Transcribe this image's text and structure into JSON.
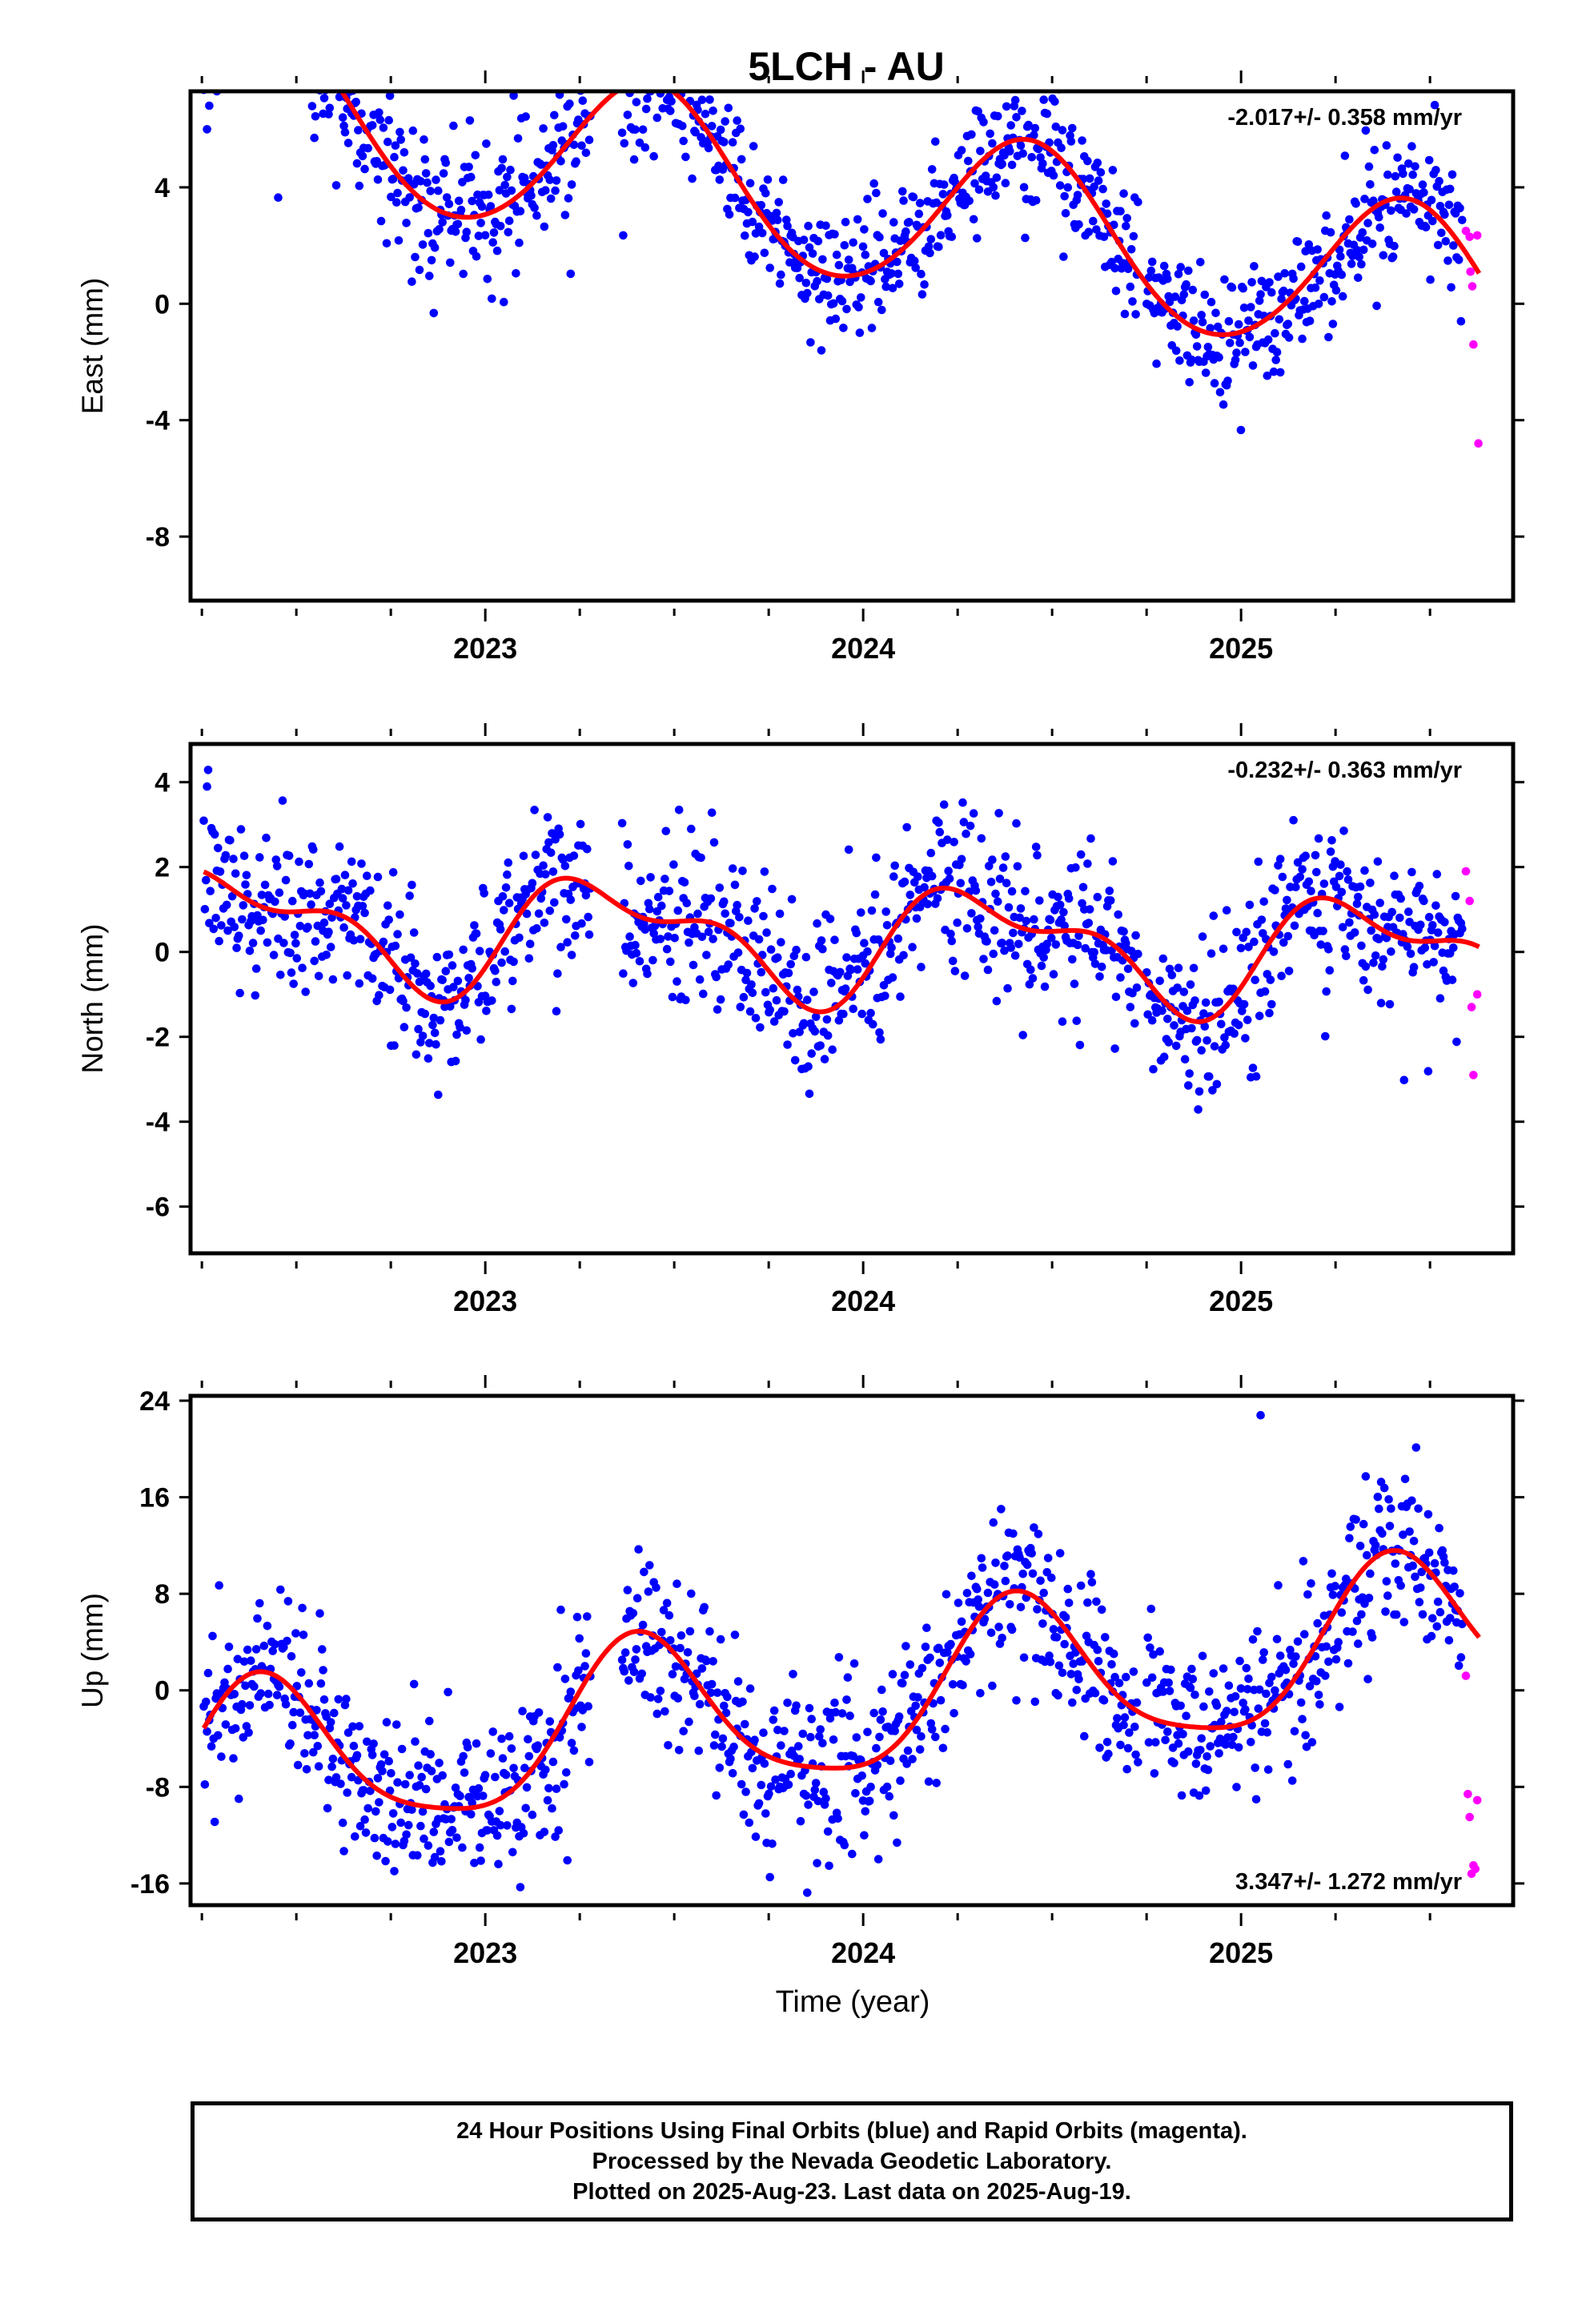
{
  "title": "5LCH - AU",
  "colors": {
    "final": "#0000ff",
    "rapid": "#ff00ff",
    "fit": "#ff0000",
    "frame": "#000000"
  },
  "x_axis": {
    "label": "Time (year)",
    "range": [
      2022.22,
      2025.72
    ],
    "major_ticks": [
      2023,
      2024,
      2025
    ],
    "major_tick_labels": [
      "2023",
      "2024",
      "2025"
    ]
  },
  "caption": [
    "24 Hour Positions Using Final Orbits (blue) and Rapid Orbits (magenta).",
    "Processed by the Nevada Geodetic Laboratory.",
    "Plotted on 2025-Aug-23. Last data on 2025-Aug-19."
  ],
  "chart_data": [
    {
      "type": "scatter",
      "ylabel": "East (mm)",
      "ylim": [
        -10.2,
        7.3
      ],
      "yticks": [
        4,
        0,
        -4,
        -8
      ],
      "ytick_labels": [
        "4",
        "0",
        "-4",
        "-8"
      ],
      "rate_text": "-2.017+/- 0.358 mm/yr",
      "rate_position": "top-right",
      "series": [
        {
          "name": "Final Orbits (blue)",
          "model": {
            "offset": 3.5,
            "trend": -2.017,
            "a1": 1.15,
            "b1": -2.6,
            "a2": -0.1,
            "b2": 0.15
          },
          "scatter": 1.15,
          "samples": 1150
        },
        {
          "name": "Rapid Orbits (magenta)",
          "x": [
            2025.595,
            2025.605,
            2025.607,
            2025.612,
            2025.615,
            2025.625,
            2025.628
          ],
          "y": [
            2.5,
            2.3,
            1.1,
            0.6,
            -1.4,
            2.35,
            -4.8
          ]
        },
        {
          "name": "fit",
          "model": "see Final Orbits model"
        }
      ]
    },
    {
      "type": "scatter",
      "ylabel": "North (mm)",
      "ylim": [
        -7.1,
        4.9
      ],
      "yticks": [
        4,
        2,
        0,
        -2,
        -4,
        -6
      ],
      "ytick_labels": [
        "4",
        "2",
        "0",
        "-2",
        "-4",
        "-6"
      ],
      "rate_text": "-0.232+/- 0.363 mm/yr",
      "rate_position": "top-right",
      "series": [
        {
          "name": "Final Orbits (blue)",
          "model": {
            "offset": 0.25,
            "trend": -0.232,
            "a1": 1.0,
            "b1": -0.6,
            "a2": 0.55,
            "b2": -0.25
          },
          "scatter": 0.95,
          "samples": 1150
        },
        {
          "name": "Rapid Orbits (magenta)",
          "x": [
            2025.595,
            2025.605,
            2025.61,
            2025.615,
            2025.625
          ],
          "y": [
            1.9,
            1.2,
            -1.3,
            -2.9,
            -1.0
          ]
        }
      ]
    },
    {
      "type": "scatter",
      "ylabel": "Up (mm)",
      "ylim": [
        -17.8,
        24.4
      ],
      "yticks": [
        24,
        16,
        8,
        0,
        -8,
        -16
      ],
      "ytick_labels": [
        "24",
        "16",
        "8",
        "0",
        "-8",
        "-16"
      ],
      "rate_text": "3.347+/- 1.272 mm/yr",
      "rate_position": "bottom-right",
      "series": [
        {
          "name": "Final Orbits (blue)",
          "model": {
            "offset": -0.9,
            "trend": 3.347,
            "a1": 3.55,
            "b1": -5.45,
            "a2": -1.3,
            "b2": 0.2
          },
          "scatter": 3.4,
          "samples": 1150
        },
        {
          "name": "Rapid Orbits (magenta)",
          "x": [
            2025.595,
            2025.6,
            2025.605,
            2025.61,
            2025.615,
            2025.62,
            2025.625
          ],
          "y": [
            1.2,
            -8.6,
            -10.5,
            -15.2,
            -14.5,
            -14.8,
            -9.1
          ]
        }
      ]
    }
  ]
}
